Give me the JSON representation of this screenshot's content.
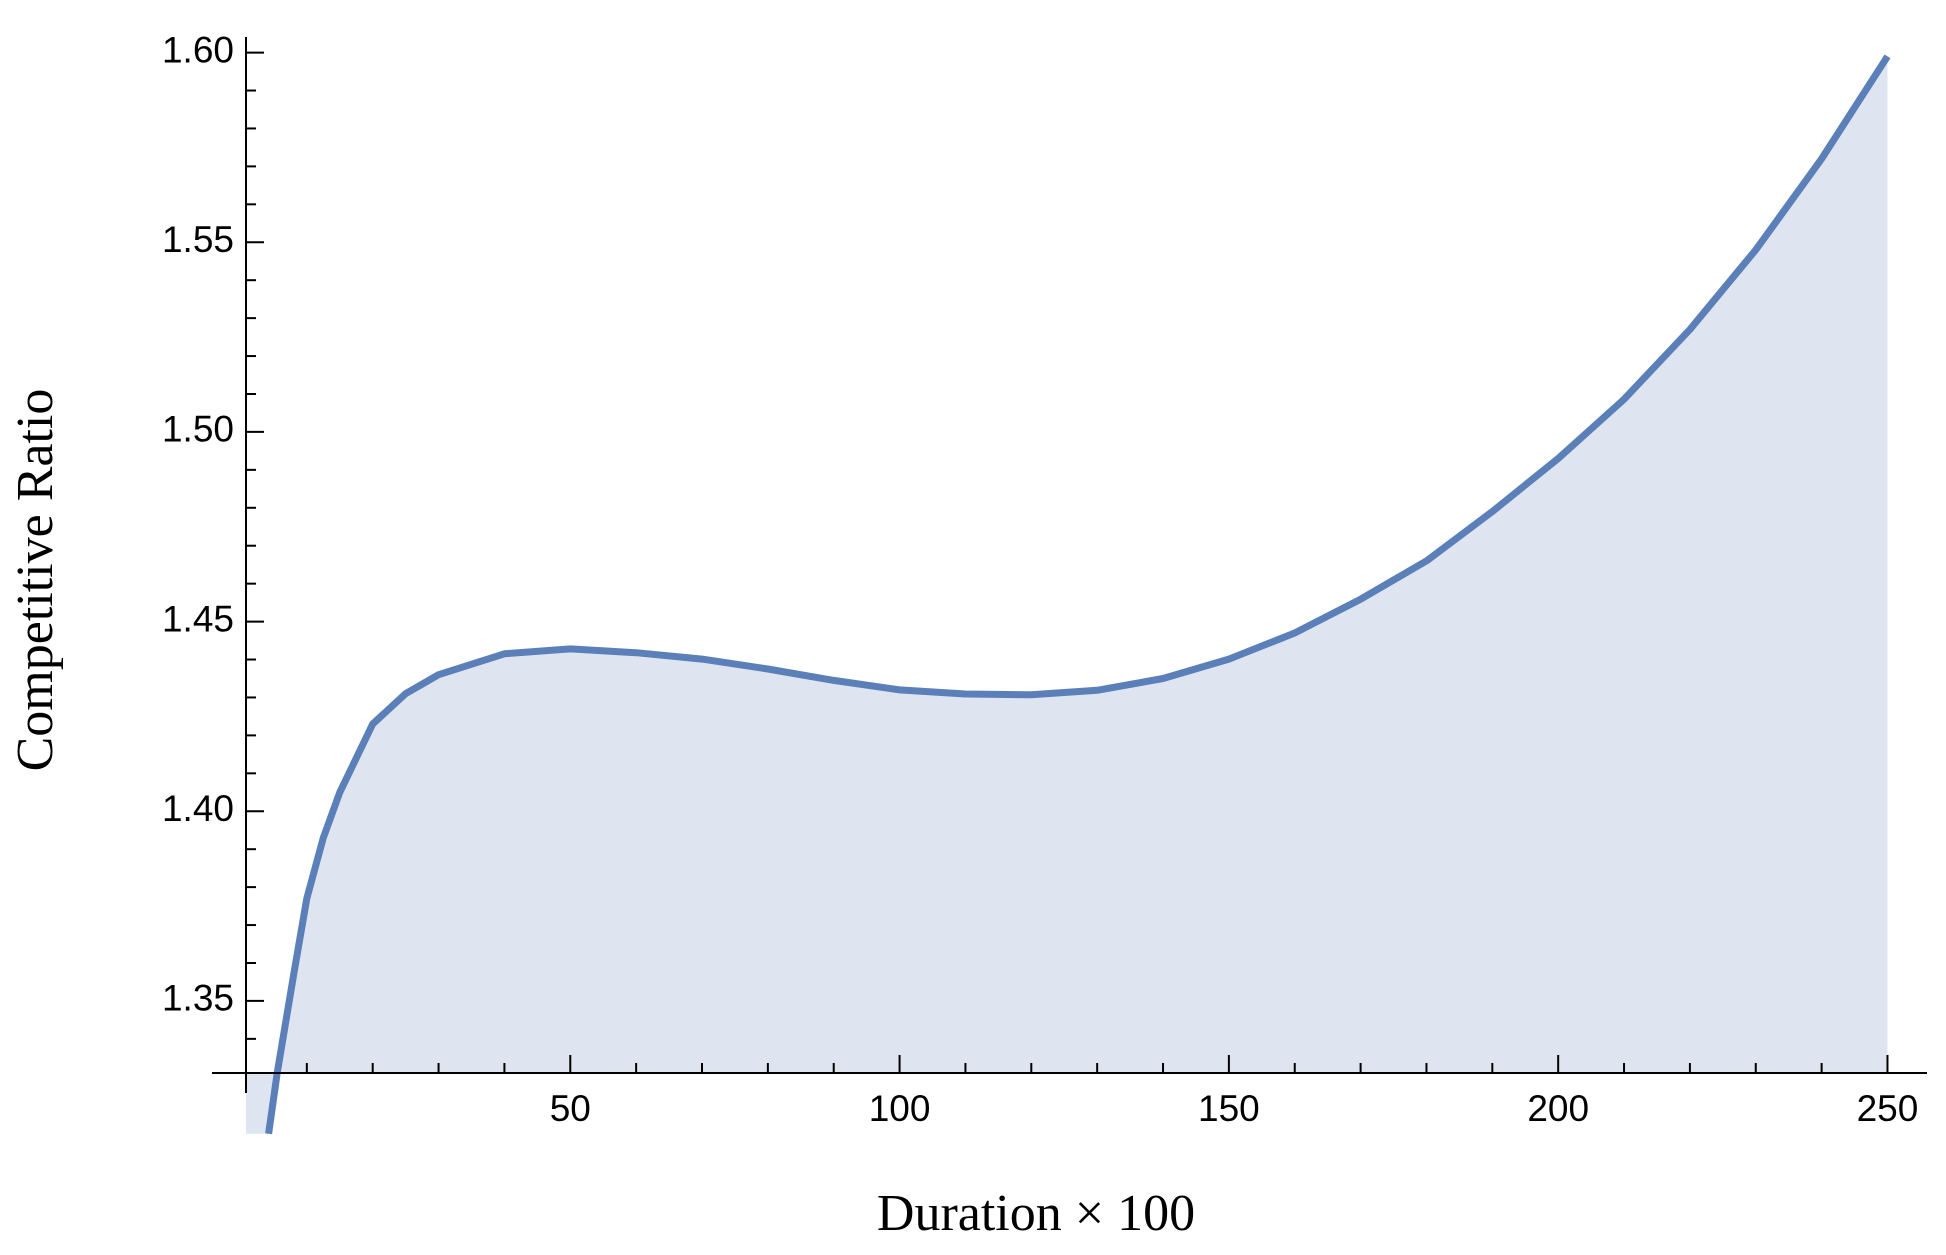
{
  "chart_data": {
    "type": "area",
    "x_label": "Duration × 100",
    "y_label": "Competitive Ratio",
    "color": "#5b7fb8",
    "fill_color": "#dfe5f0",
    "x": [
      4.2,
      5.5,
      8,
      10,
      12.5,
      15,
      20,
      25,
      30,
      40,
      50,
      60,
      70,
      80,
      90,
      100,
      110,
      120,
      130,
      140,
      150,
      160,
      170,
      180,
      190,
      200,
      210,
      220,
      230,
      240,
      250
    ],
    "values": [
      1.315,
      1.331,
      1.357,
      1.377,
      1.393,
      1.405,
      1.423,
      1.431,
      1.436,
      1.4415,
      1.4428,
      1.4418,
      1.4401,
      1.4375,
      1.4345,
      1.432,
      1.4309,
      1.4307,
      1.4319,
      1.435,
      1.4401,
      1.447,
      1.4559,
      1.466,
      1.479,
      1.493,
      1.5086,
      1.527,
      1.548,
      1.572,
      1.599
    ],
    "xlim": [
      -4.4,
      256
    ],
    "ylim": [
      1.331,
      1.602
    ],
    "xticks": [
      50,
      100,
      150,
      200,
      250
    ],
    "yticks": [
      1.35,
      {
        "value": 1.4,
        "label": "1.40"
      },
      1.45,
      {
        "value": 1.5,
        "label": "1.50"
      },
      1.55,
      {
        "value": 1.6,
        "label": "1.60"
      }
    ],
    "x_minor_ticks": [
      10,
      20,
      30,
      40,
      60,
      70,
      80,
      90,
      110,
      120,
      130,
      140,
      160,
      170,
      180,
      190,
      210,
      220,
      230,
      240
    ],
    "y_minor_ticks": [
      1.34,
      1.36,
      1.37,
      1.38,
      1.39,
      1.41,
      1.42,
      1.43,
      1.44,
      1.46,
      1.47,
      1.48,
      1.49,
      1.51,
      1.52,
      1.53,
      1.54,
      1.56,
      1.57,
      1.58,
      1.59
    ]
  }
}
